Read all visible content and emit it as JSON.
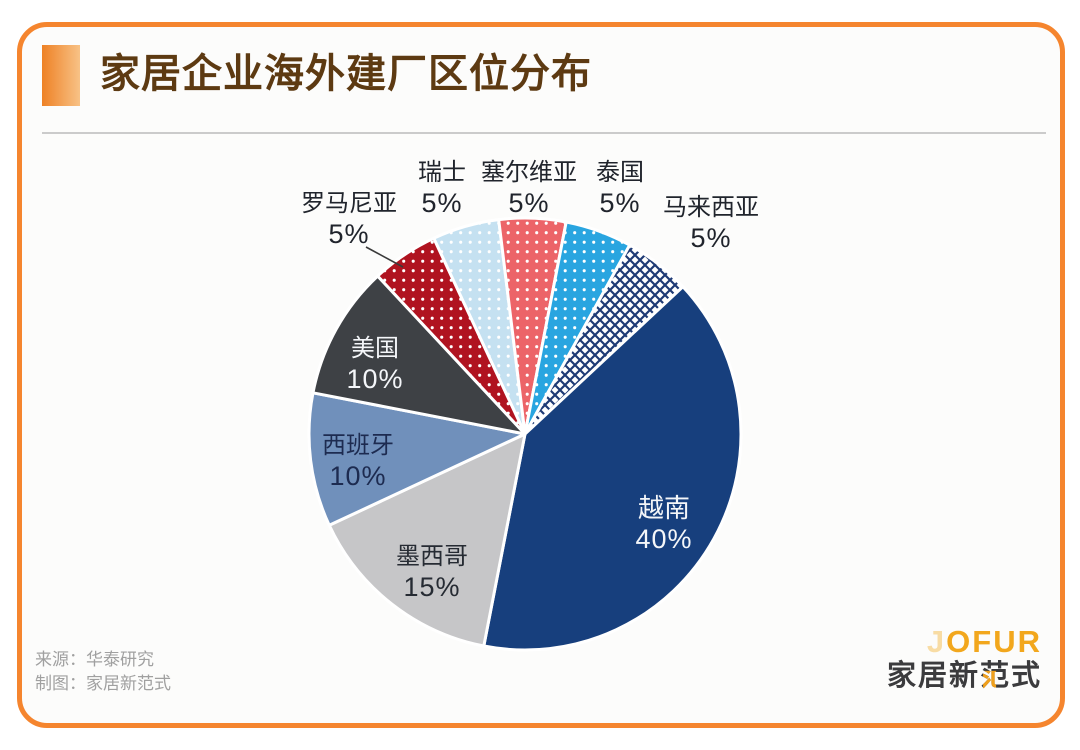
{
  "header": {
    "title": "家居企业海外建厂区位分布"
  },
  "chart_data": {
    "type": "pie",
    "title": "家居企业海外建厂区位分布",
    "unit": "%",
    "start_angle_deg": -25,
    "legend": "none",
    "slices": [
      {
        "name": "瑞士",
        "value": 5,
        "pct": "5%",
        "color": "#c5e1f1",
        "pattern": "dots",
        "dot_color": "#ffffff"
      },
      {
        "name": "塞尔维亚",
        "value": 5,
        "pct": "5%",
        "color": "#ec6468",
        "pattern": "dots",
        "dot_color": "#ffffff"
      },
      {
        "name": "泰国",
        "value": 5,
        "pct": "5%",
        "color": "#29a5e0",
        "pattern": "dots",
        "dot_color": "#ffffff"
      },
      {
        "name": "马来西亚",
        "value": 5,
        "pct": "5%",
        "color": "#ffffff",
        "pattern": "crosshatch",
        "line_color": "#1e3a75"
      },
      {
        "name": "越南",
        "value": 40,
        "pct": "40%",
        "color": "#173f7d",
        "pattern": "solid"
      },
      {
        "name": "墨西哥",
        "value": 15,
        "pct": "15%",
        "color": "#c6c6c8",
        "pattern": "solid"
      },
      {
        "name": "西班牙",
        "value": 10,
        "pct": "10%",
        "color": "#7090bb",
        "pattern": "solid"
      },
      {
        "name": "美国",
        "value": 10,
        "pct": "10%",
        "color": "#3e4145",
        "pattern": "solid"
      },
      {
        "name": "罗马尼亚",
        "value": 5,
        "pct": "5%",
        "color": "#b01320",
        "pattern": "dots",
        "dot_color": "#ffffff"
      }
    ]
  },
  "footer": {
    "source_line": "来源：华泰研究",
    "credit_line": "制图：家居新范式"
  },
  "logo": {
    "word_faint": "J",
    "word_main": "OFUR",
    "cn_prefix": "家居新",
    "cn_accent": "范",
    "cn_suffix": "式"
  },
  "colors": {
    "card_border": "#f5852e",
    "title_text": "#5d3a12",
    "accent_orange": "#f2a71d",
    "slice_gap": "#ffffff"
  }
}
